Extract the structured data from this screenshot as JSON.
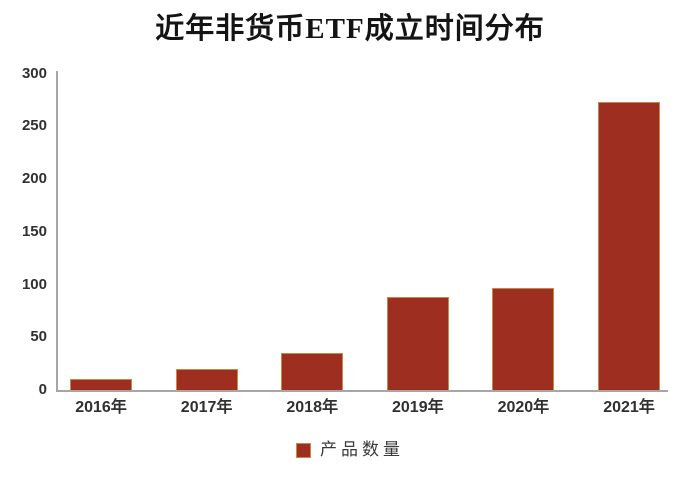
{
  "title": "近年非货币ETF成立时间分布",
  "legend": {
    "label": "产品数量"
  },
  "colors": {
    "bar_fill": "#9E2E1F",
    "bar_border": "#C28A4B",
    "axis_line": "#A6A6A6",
    "title_text": "#141414",
    "tick_text": "#303030"
  },
  "chart_data": {
    "type": "bar",
    "title": "近年非货币ETF成立时间分布",
    "categories": [
      "2016年",
      "2017年",
      "2018年",
      "2019年",
      "2020年",
      "2021年"
    ],
    "series": [
      {
        "name": "产品数量",
        "values": [
          10,
          20,
          35,
          88,
          97,
          273
        ]
      }
    ],
    "xlabel": "",
    "ylabel": "",
    "ylim": [
      0,
      300
    ],
    "yticks": [
      0,
      50,
      100,
      150,
      200,
      250,
      300
    ],
    "grid": false,
    "legend_position": "bottom"
  }
}
